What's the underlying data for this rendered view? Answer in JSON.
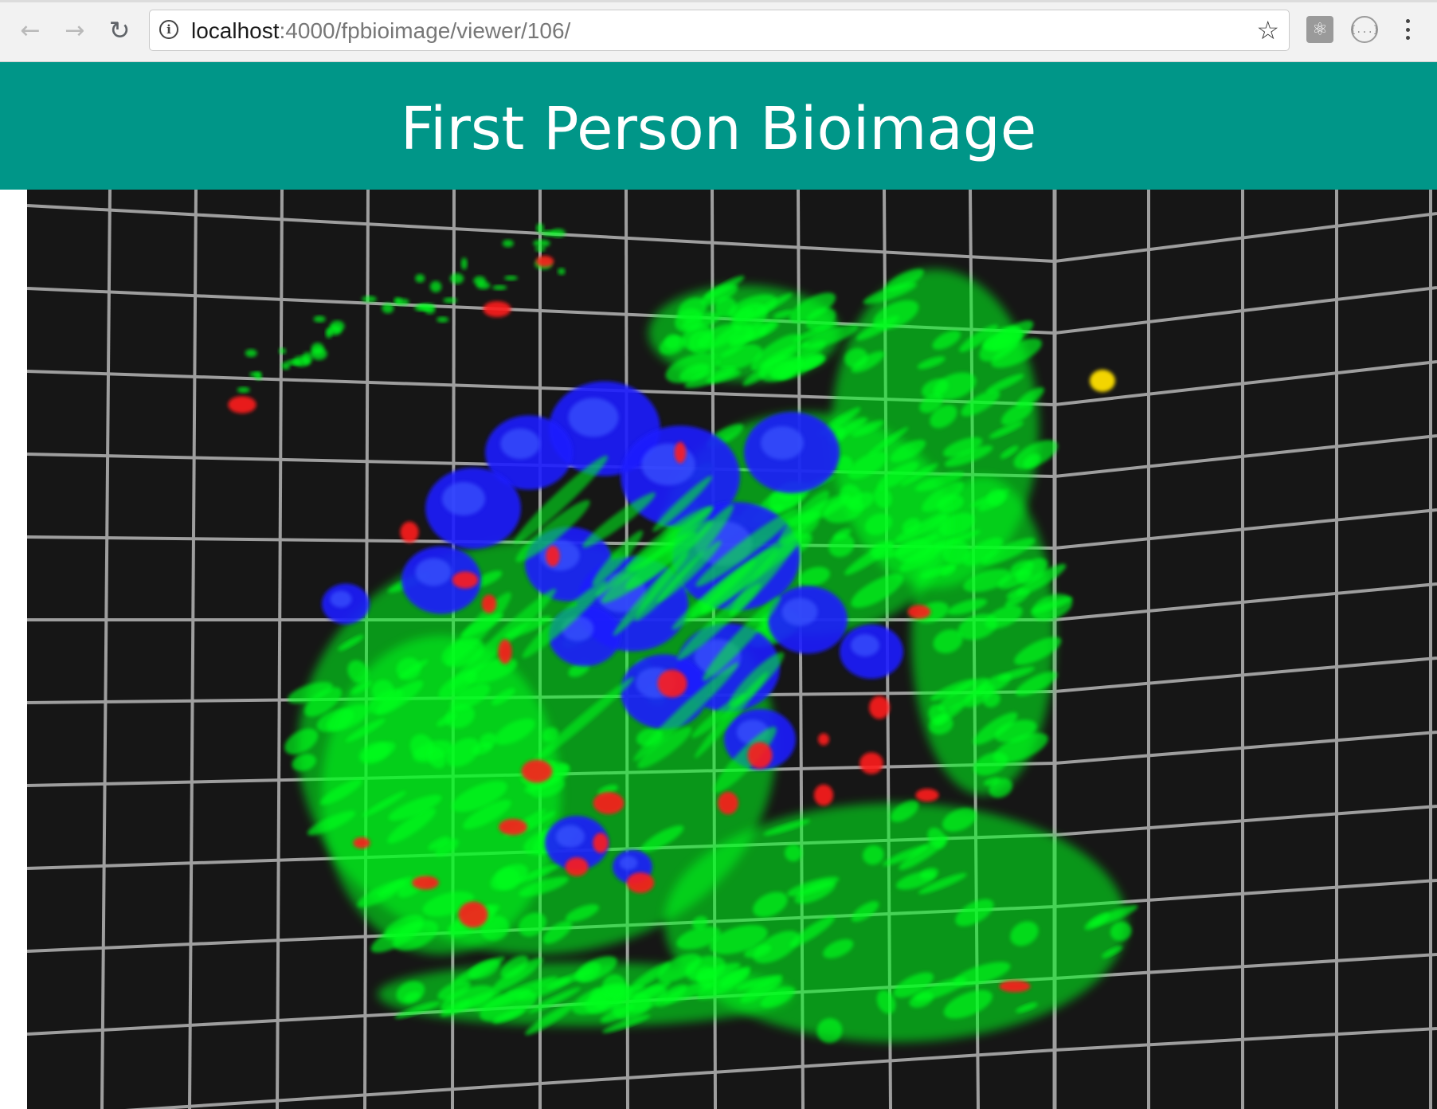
{
  "browser": {
    "url_host": "localhost",
    "url_rest": ":4000/fpbioimage/viewer/106/",
    "icons": {
      "back": "arrow-left-icon",
      "forward": "arrow-right-icon",
      "reload": "reload-icon",
      "info": "info-icon",
      "bookmark": "star-icon",
      "extension_1": "react-devtools-icon",
      "extension_2": "json-viewer-icon",
      "menu": "kebab-menu-icon"
    }
  },
  "header": {
    "title": "First Person Bioimage",
    "background": "#009688"
  },
  "viewer": {
    "background": "#161616",
    "grid_color": "#9e9e9e",
    "channels": [
      {
        "color": "#00ff1e"
      },
      {
        "color": "#1a1aff"
      },
      {
        "color": "#ff1a1a"
      }
    ]
  }
}
